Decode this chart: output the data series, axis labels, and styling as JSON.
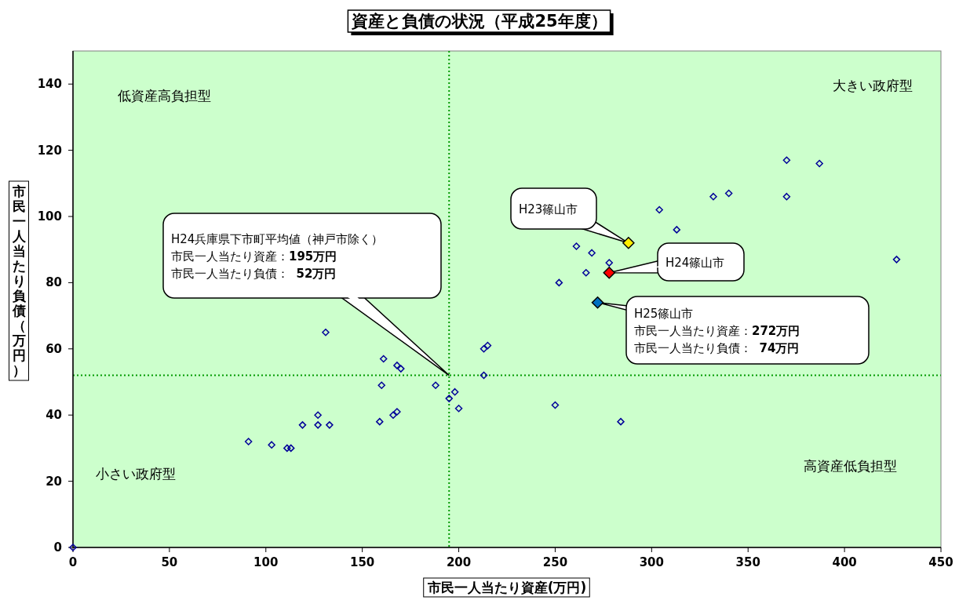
{
  "chart_data": {
    "type": "scatter",
    "title": "資産と負債の状況（平成25年度）",
    "xlabel": "市民一人当たり資産(万円)",
    "ylabel": "市民一人当たり負債（万円）",
    "xlim": [
      0,
      450
    ],
    "xticks": [
      0,
      50,
      100,
      150,
      200,
      250,
      300,
      350,
      400,
      450
    ],
    "ylim": [
      0,
      150
    ],
    "yticks": [
      0,
      20,
      40,
      60,
      80,
      100,
      120,
      140
    ],
    "grid": false,
    "marker": "diamond",
    "series": [
      {
        "color": "#000099",
        "x": [
          0,
          91,
          103,
          111,
          113,
          119,
          127,
          127,
          133,
          131,
          159,
          160,
          161,
          166,
          168,
          168,
          170,
          188,
          195,
          198,
          200,
          213,
          215,
          213,
          250,
          252,
          261,
          266,
          269,
          278,
          284,
          304,
          313,
          332,
          340,
          370,
          370,
          387,
          427
        ],
        "values": [
          0,
          32,
          31,
          30,
          30,
          37,
          40,
          37,
          37,
          65,
          38,
          49,
          57,
          40,
          41,
          55,
          54,
          49,
          45,
          47,
          42,
          60,
          61,
          52,
          43,
          80,
          91,
          83,
          89,
          86,
          38,
          102,
          96,
          106,
          107,
          117,
          106,
          116,
          87
        ]
      },
      {
        "color": "#ffee00",
        "x": [
          288
        ],
        "values": [
          92
        ]
      },
      {
        "color": "#ff0000",
        "x": [
          278
        ],
        "values": [
          83
        ]
      },
      {
        "color": "#0070c0",
        "x": [
          272
        ],
        "values": [
          74
        ]
      }
    ],
    "ref_lines": [
      {
        "axis": "x",
        "value": 195,
        "color": "#009900",
        "line_style": "dotted"
      },
      {
        "axis": "y",
        "value": 52,
        "color": "#009900",
        "line_style": "dotted"
      }
    ],
    "annotations": [
      "H24兵庫県下市町平均値（神戸市除く）",
      "市民一人当たり資産：**195万円**",
      "市民一人当たり負債：  **52万円**",
      "H23篠山市",
      "H24篠山市",
      "H25篠山市",
      "市民一人当たり資産：**272万円**",
      "市民一人当たり負債：  **74万円**",
      "低資産高負担型",
      "大きい政府型",
      "小さい政府型",
      "高資産低負担型"
    ]
  }
}
